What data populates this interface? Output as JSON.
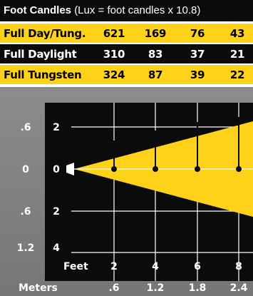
{
  "header": {
    "title_bold": "Foot Candles",
    "title_rest": "(Lux = foot candles x 10.8)"
  },
  "rows": [
    {
      "label": "Full Day/Tung.",
      "values": [
        "621",
        "169",
        "76",
        "43"
      ],
      "style": "yellow"
    },
    {
      "label": "Full Daylight",
      "values": [
        "310",
        "83",
        "37",
        "21"
      ],
      "style": "dark"
    },
    {
      "label": "Full Tungsten",
      "values": [
        "324",
        "87",
        "39",
        "22"
      ],
      "style": "yellow"
    }
  ],
  "beam": {
    "feet_label": "Feet",
    "meters_label": "Meters",
    "feet_ticks": [
      "2",
      "4",
      "6",
      "8"
    ],
    "meter_ticks": [
      ".6",
      "1.2",
      "1.8",
      "2.4"
    ],
    "vertical_feet": [
      "2",
      "0",
      "2",
      "4"
    ],
    "vertical_meters": [
      ".6",
      "0",
      ".6",
      "1.2"
    ]
  },
  "colors": {
    "yellow": "#ffd21a",
    "black": "#0b0b0b",
    "gray": "#808080",
    "white": "#ffffff"
  }
}
